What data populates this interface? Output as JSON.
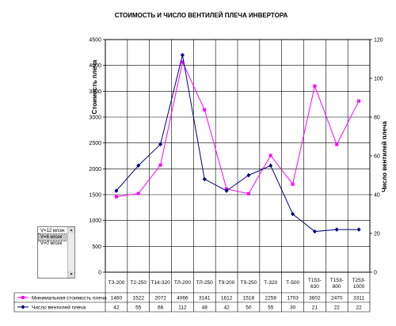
{
  "chart_data": {
    "type": "line",
    "title": "СТОИМОСТЬ И ЧИСЛО ВЕНТИЛЕЙ ПЛЕЧА ИНВЕРТОРА",
    "ylabel_left": "Стоимость плеча",
    "ylabel_right": "Число вентилей плеча",
    "xlabel": "",
    "categories": [
      "ТЗ-200",
      "Т2-250",
      "Т14-320",
      "ТЛ-200",
      "ТЛ-250",
      "Т9-200",
      "Т9-250",
      "Т-320",
      "Т-500",
      "Т153-630",
      "Т153-800",
      "Т253-1000"
    ],
    "ylim_left": [
      0,
      4500
    ],
    "ylim_right": [
      0,
      120
    ],
    "yticks_left": [
      "0",
      "500",
      "1000",
      "1500",
      "2000",
      "2500",
      "3000",
      "3500",
      "4000",
      "4500"
    ],
    "yticks_right": [
      "0",
      "20",
      "40",
      "60",
      "80",
      "100",
      "120"
    ],
    "grid": true,
    "series": [
      {
        "name": "Минимальная стоимость плеча",
        "axis": "left",
        "color": "#ff00ff",
        "marker": "square",
        "values": [
          1460,
          1522,
          2072,
          4066,
          3141,
          1612,
          1518,
          2258,
          1703,
          3602,
          2470,
          3311
        ]
      },
      {
        "name": "Число вентилей плеча",
        "axis": "right",
        "color": "#000080",
        "marker": "diamond",
        "values": [
          42,
          55,
          66,
          112,
          48,
          42,
          50,
          55,
          30,
          21,
          22,
          22
        ]
      }
    ],
    "data_table": {
      "rows": [
        [
          "1460",
          "1522",
          "2072",
          "4066",
          "3141",
          "1612",
          "1518",
          "2258",
          "1703",
          "3602",
          "2470",
          "3311"
        ],
        [
          "42",
          "55",
          "66",
          "112",
          "48",
          "42",
          "50",
          "55",
          "30",
          "21",
          "22",
          "22"
        ]
      ]
    }
  },
  "listbox": {
    "items": [
      "V=12 м/сек",
      "V=6 м/сек",
      "V=0 м/сек"
    ],
    "selected_index": 1
  }
}
